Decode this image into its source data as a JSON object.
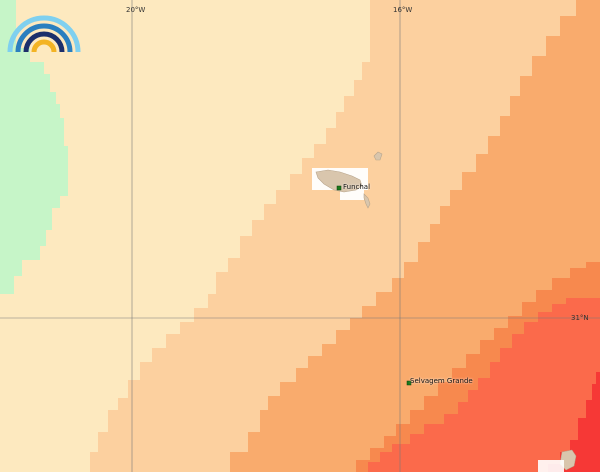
{
  "map": {
    "graticule": {
      "lon_labels": [
        "20°W",
        "16°W"
      ],
      "lat_labels": [
        "31°N"
      ]
    },
    "places": [
      {
        "name": "Funchal",
        "label": "Funchal"
      },
      {
        "name": "Selvagem Grande",
        "label": "Selvagem Grande"
      }
    ],
    "bands": [
      {
        "name": "green",
        "color": "#c6f5c8"
      },
      {
        "name": "pale-yellow",
        "color": "#fde9bf"
      },
      {
        "name": "light-peach",
        "color": "#fcd09f"
      },
      {
        "name": "peach",
        "color": "#f9ab6d"
      },
      {
        "name": "orange",
        "color": "#f7894e"
      },
      {
        "name": "red-orange",
        "color": "#fb6a4b"
      },
      {
        "name": "red",
        "color": "#f63836"
      }
    ],
    "land_color": "#d9c6ad",
    "logo": {
      "icon": "rainbow-logo-icon"
    }
  }
}
